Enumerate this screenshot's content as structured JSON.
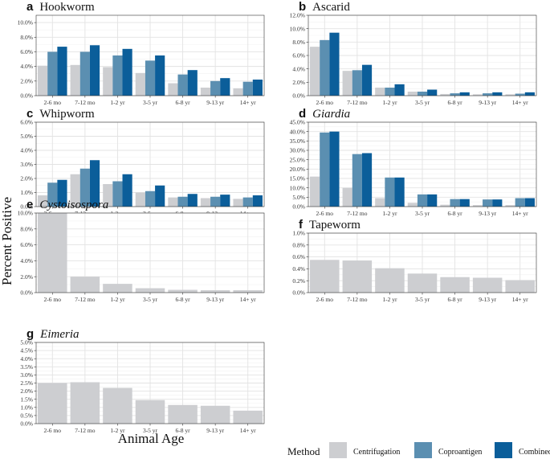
{
  "colors": {
    "centrifugation": "#cdced1",
    "coproantigen": "#5b8fb1",
    "combined": "#0b5e9a"
  },
  "axis_titles": {
    "y": "Percent Positive",
    "x": "Animal Age"
  },
  "legend": {
    "title": "Method",
    "placement": "bottom",
    "items": [
      "Centrifugation",
      "Coproantigen",
      "Combined"
    ]
  },
  "chart_data": [
    {
      "type": "bar",
      "letter": "a",
      "title": "Hookworm",
      "italic": false,
      "categories": [
        "2-6 mo",
        "7-12 mo",
        "1-2 yr",
        "3-5 yr",
        "6-8 yr",
        "9-13 yr",
        "14+ yr"
      ],
      "yticks": [
        "0.0%",
        "2.0%",
        "4.0%",
        "6.0%",
        "8.0%",
        "10.0%"
      ],
      "ylim": [
        0,
        11
      ],
      "series": [
        {
          "name": "Centrifugation",
          "values": [
            4.1,
            4.2,
            3.9,
            3.1,
            1.7,
            1.1,
            1.0
          ]
        },
        {
          "name": "Coproantigen",
          "values": [
            6.0,
            6.0,
            5.5,
            4.8,
            2.9,
            2.0,
            1.9
          ]
        },
        {
          "name": "Combined",
          "values": [
            6.7,
            6.9,
            6.4,
            5.5,
            3.5,
            2.4,
            2.2
          ]
        }
      ]
    },
    {
      "type": "bar",
      "letter": "b",
      "title": "Ascarid",
      "italic": false,
      "categories": [
        "2-6 mo",
        "7-12 mo",
        "1-2 yr",
        "3-5 yr",
        "6-8 yr",
        "9-13 yr",
        "14+ yr"
      ],
      "yticks": [
        "0.0%",
        "2.0%",
        "4.0%",
        "6.0%",
        "8.0%",
        "10.0%",
        "12.0%"
      ],
      "ylim": [
        0,
        12
      ],
      "series": [
        {
          "name": "Centrifugation",
          "values": [
            7.3,
            3.7,
            1.2,
            0.6,
            0.25,
            0.2,
            0.2
          ]
        },
        {
          "name": "Coproantigen",
          "values": [
            8.3,
            3.8,
            1.2,
            0.6,
            0.35,
            0.35,
            0.3
          ]
        },
        {
          "name": "Combined",
          "values": [
            9.4,
            4.6,
            1.7,
            0.9,
            0.5,
            0.5,
            0.5
          ]
        }
      ]
    },
    {
      "type": "bar",
      "letter": "c",
      "title": "Whipworm",
      "italic": false,
      "categories": [
        "2-6 mo",
        "7-12 mo",
        "1-2 yr",
        "3-5 yr",
        "6-8 yr",
        "9-13 yr",
        "14+ yr"
      ],
      "yticks": [
        "0.0%",
        "1.0%",
        "2.0%",
        "3.0%",
        "4.0%",
        "5.0%",
        "6.0%"
      ],
      "ylim": [
        0,
        6
      ],
      "series": [
        {
          "name": "Centrifugation",
          "values": [
            0.8,
            2.3,
            1.6,
            1.0,
            0.65,
            0.6,
            0.55
          ]
        },
        {
          "name": "Coproantigen",
          "values": [
            1.7,
            2.7,
            1.8,
            1.1,
            0.7,
            0.7,
            0.65
          ]
        },
        {
          "name": "Combined",
          "values": [
            1.9,
            3.3,
            2.3,
            1.5,
            0.9,
            0.85,
            0.8
          ]
        }
      ]
    },
    {
      "type": "bar",
      "letter": "d",
      "title": "Giardia",
      "italic": true,
      "categories": [
        "2-6 mo",
        "7-12 mo",
        "1-2 yr",
        "3-5 yr",
        "6-8 yr",
        "9-13 yr",
        "14+ yr"
      ],
      "yticks": [
        "0.0%",
        "5.0%",
        "10.0%",
        "15.0%",
        "20.0%",
        "25.0%",
        "30.0%",
        "35.0%",
        "40.0%",
        "45.0%"
      ],
      "ylim": [
        0,
        45
      ],
      "series": [
        {
          "name": "Centrifugation",
          "values": [
            16.0,
            10.0,
            4.5,
            2.0,
            1.0,
            0.8,
            0.8
          ]
        },
        {
          "name": "Coproantigen",
          "values": [
            39.5,
            28.0,
            15.5,
            6.5,
            4.0,
            3.8,
            4.5
          ]
        },
        {
          "name": "Combined",
          "values": [
            40.0,
            28.5,
            15.5,
            6.5,
            4.0,
            3.8,
            4.5
          ]
        }
      ]
    },
    {
      "type": "bar",
      "letter": "e",
      "title": "Cystoisospora",
      "italic": true,
      "categories": [
        "2-6 mo",
        "7-12 mo",
        "1-2 yr",
        "3-5 yr",
        "6-8 yr",
        "9-13 yr",
        "14+ yr"
      ],
      "yticks": [
        "0.0%",
        "2.0%",
        "4.0%",
        "6.0%",
        "8.0%",
        "10.0%"
      ],
      "ylim": [
        0,
        10
      ],
      "series": [
        {
          "name": "Centrifugation",
          "values": [
            10.0,
            2.0,
            1.1,
            0.55,
            0.35,
            0.3,
            0.3
          ]
        }
      ]
    },
    {
      "type": "bar",
      "letter": "f",
      "title": "Tapeworm",
      "italic": false,
      "categories": [
        "2-6 mo",
        "7-12 mo",
        "1-2 yr",
        "3-5 yr",
        "6-8 yr",
        "9-13 yr",
        "14+ yr"
      ],
      "yticks": [
        "0.0%",
        "0.2%",
        "0.4%",
        "0.6%",
        "0.8%",
        "1.0%"
      ],
      "ylim": [
        0,
        1
      ],
      "series": [
        {
          "name": "Centrifugation",
          "values": [
            0.55,
            0.54,
            0.41,
            0.32,
            0.26,
            0.25,
            0.21
          ]
        }
      ]
    },
    {
      "type": "bar",
      "letter": "g",
      "title": "Eimeria",
      "italic": true,
      "categories": [
        "2-6 mo",
        "7-12 mo",
        "1-2 yr",
        "3-5 yr",
        "6-8 yr",
        "9-13 yr",
        "14+ yr"
      ],
      "yticks": [
        "0.0%",
        "0.5%",
        "1.0%",
        "1.5%",
        "2.0%",
        "2.5%",
        "3.0%",
        "3.5%",
        "4.0%",
        "4.5%",
        "5.0%"
      ],
      "ylim": [
        0,
        5
      ],
      "series": [
        {
          "name": "Centrifugation",
          "values": [
            2.5,
            2.55,
            2.2,
            1.45,
            1.15,
            1.1,
            0.8
          ]
        }
      ]
    }
  ]
}
